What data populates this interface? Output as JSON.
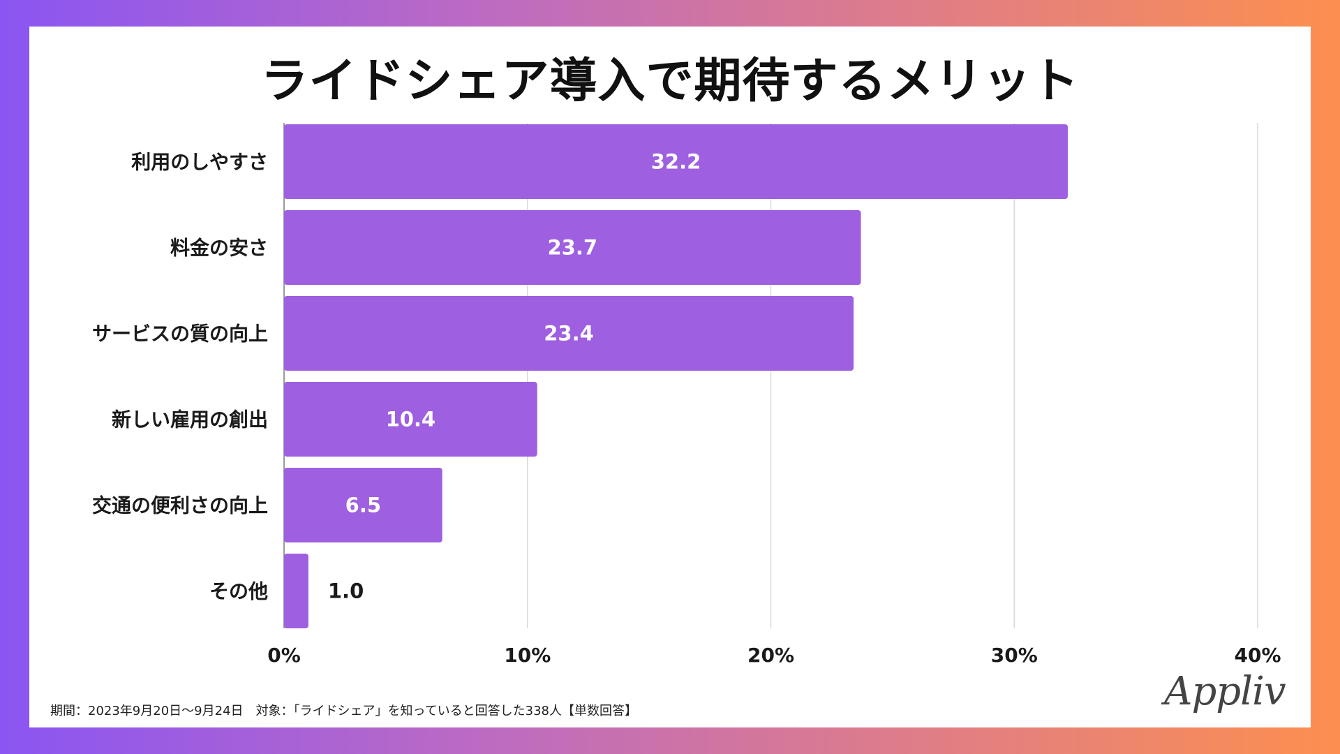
{
  "chart_data": {
    "type": "bar",
    "orientation": "horizontal",
    "title": "ライドシェア導入で期待するメリット",
    "categories": [
      "利用のしやすさ",
      "料金の安さ",
      "サービスの質の向上",
      "新しい雇用の創出",
      "交通の便利さの向上",
      "その他"
    ],
    "values": [
      32.2,
      23.7,
      23.4,
      10.4,
      6.5,
      1.0
    ],
    "value_labels": [
      "32.2",
      "23.7",
      "23.4",
      "10.4",
      "6.5",
      "1.0"
    ],
    "xlim": [
      0,
      40
    ],
    "xticks": [
      0,
      10,
      20,
      30,
      40
    ],
    "xtick_labels": [
      "0%",
      "10%",
      "20%",
      "30%",
      "40%"
    ],
    "xlabel": "",
    "ylabel": "",
    "grid": true,
    "bar_color": "#9e5fe0"
  },
  "footnote": "期間：2023年9月20日〜9月24日　対象：「ライドシェア」を知っていると回答した338人【単数回答】",
  "logo_text": "Appliv",
  "colors": {
    "gradient_start": "#8a55f2",
    "gradient_end": "#fc8f4f",
    "card": "#ffffff",
    "grid": "#d9d9d9"
  }
}
